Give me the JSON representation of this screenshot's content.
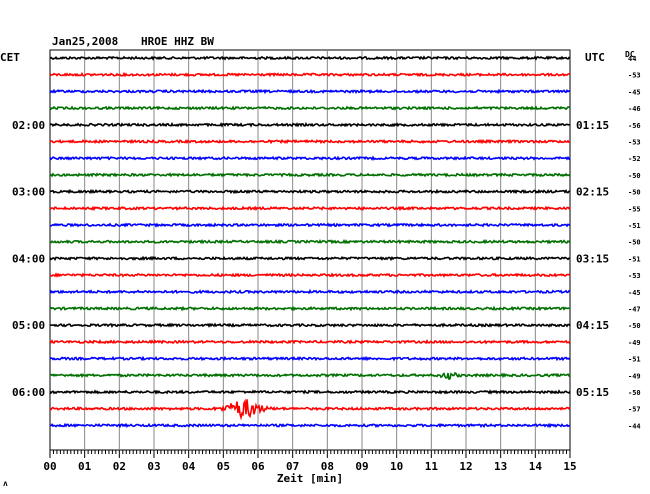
{
  "header": {
    "date": "Jan25,2008",
    "station": "HROE HHZ BW",
    "left_zone": "CET",
    "right_zone": "UTC",
    "dc_label": "DC",
    "corner_mark": "ʌ"
  },
  "chart_data": {
    "type": "line",
    "title": "Jan25,2008   HROE HHZ BW",
    "xlabel": "Zeit [min]",
    "ylabel": "",
    "xlim": [
      0,
      15
    ],
    "x_ticks": [
      "00",
      "01",
      "02",
      "03",
      "04",
      "05",
      "06",
      "07",
      "08",
      "09",
      "10",
      "11",
      "12",
      "13",
      "14",
      "15"
    ],
    "grid": true,
    "trace_colors": [
      "#000000",
      "#ff0000",
      "#0000ff",
      "#007000"
    ],
    "left_time_labels": [
      {
        "trace": 4,
        "label": "02:00"
      },
      {
        "trace": 8,
        "label": "03:00"
      },
      {
        "trace": 12,
        "label": "04:00"
      },
      {
        "trace": 16,
        "label": "05:00"
      },
      {
        "trace": 20,
        "label": "06:00"
      }
    ],
    "right_time_labels": [
      {
        "trace": 4,
        "label": "01:15"
      },
      {
        "trace": 8,
        "label": "02:15"
      },
      {
        "trace": 12,
        "label": "03:15"
      },
      {
        "trace": 16,
        "label": "04:15"
      },
      {
        "trace": 20,
        "label": "05:15"
      }
    ],
    "dc_offsets": [
      "44",
      "-53",
      "-45",
      "-46",
      "-56",
      "-53",
      "-52",
      "-50",
      "-50",
      "-55",
      "-51",
      "-50",
      "-51",
      "-53",
      "-45",
      "-47",
      "-50",
      "-49",
      "-51",
      "-49",
      "-50",
      "-57",
      "-44"
    ],
    "events": [
      {
        "trace": 21,
        "center_min": 5.6,
        "amplitude": 9,
        "duration_min": 0.9
      },
      {
        "trace": 19,
        "center_min": 11.5,
        "amplitude": 3,
        "duration_min": 0.4
      }
    ]
  }
}
